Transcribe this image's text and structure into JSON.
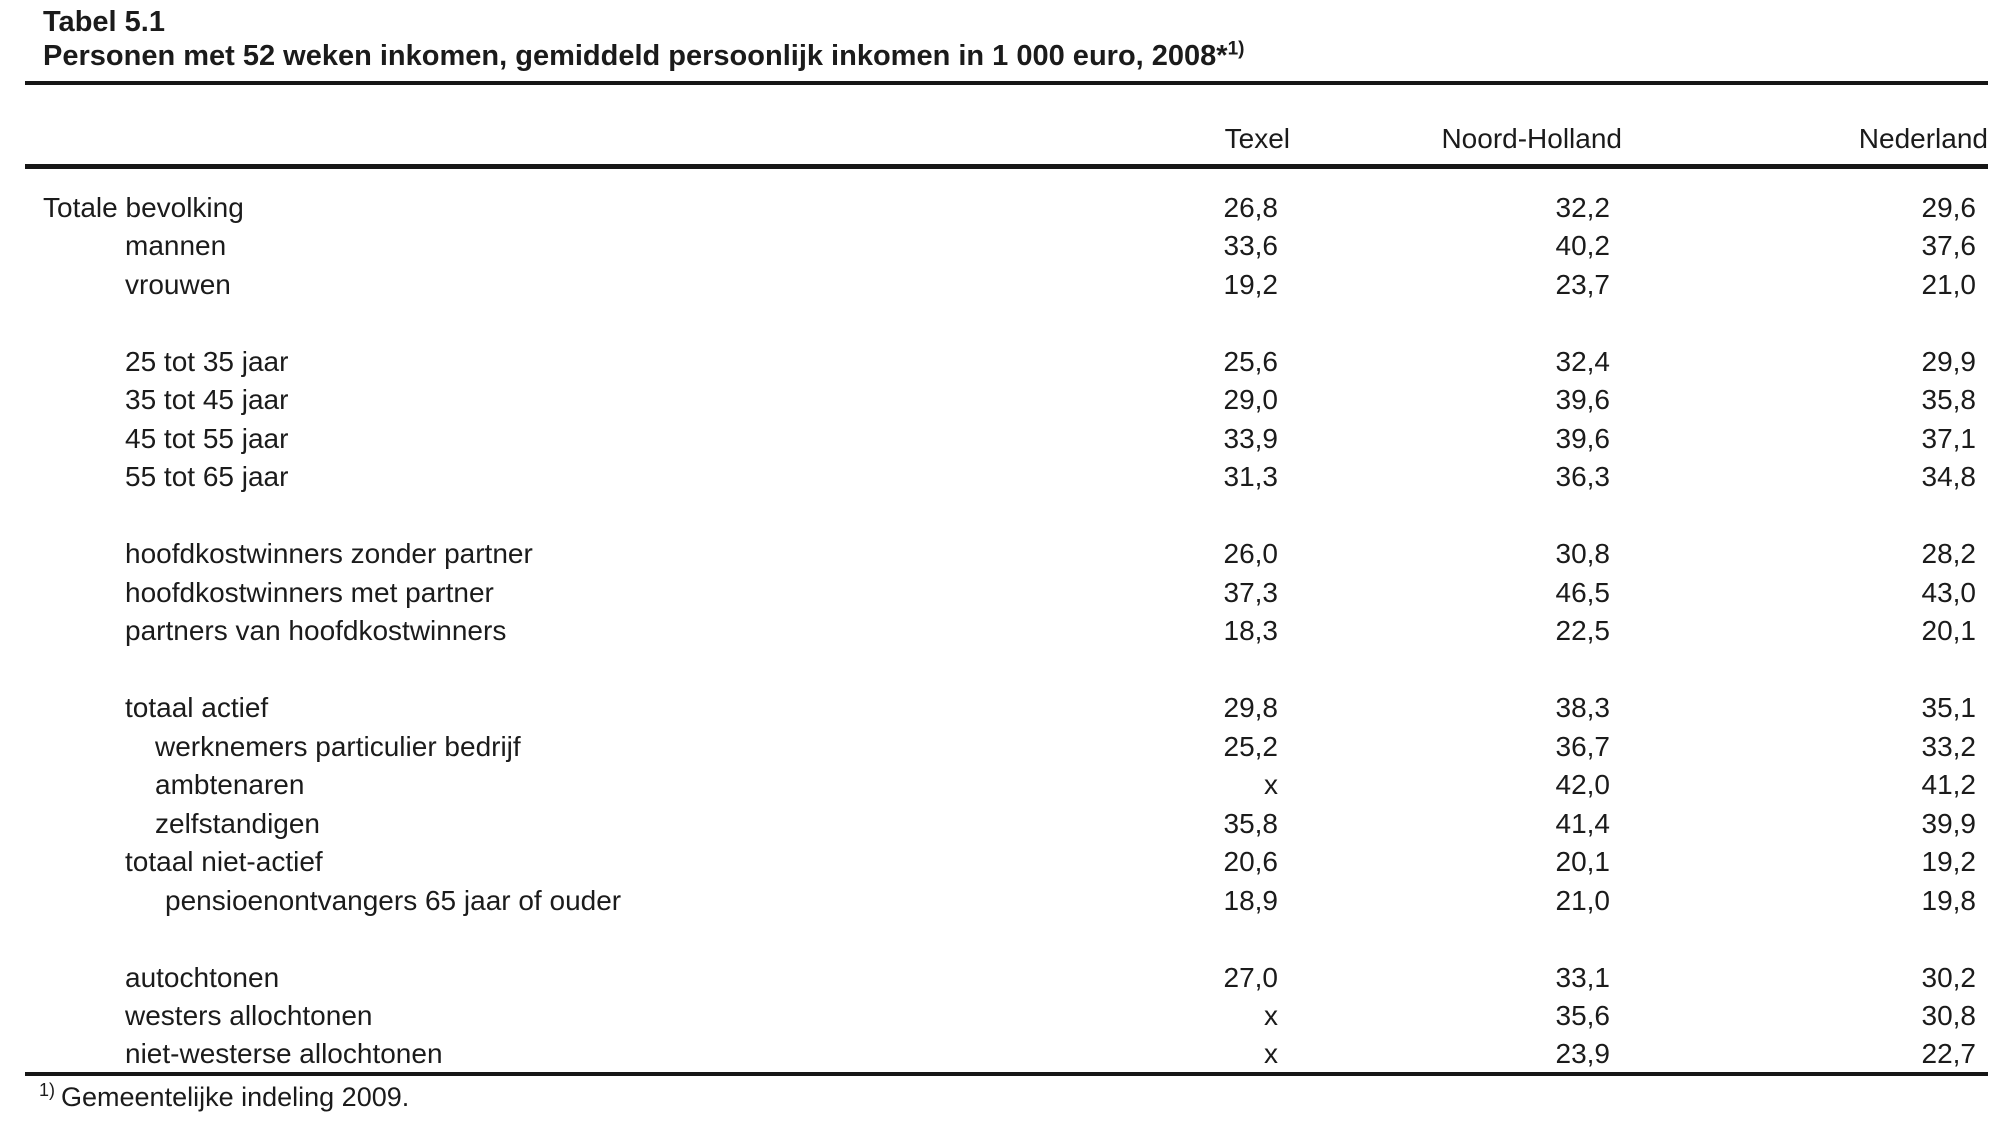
{
  "page": {
    "label": "Tabel 5.1",
    "title": "Personen met 52 weken inkomen, gemiddeld persoonlijk inkomen in 1 000 euro, 2008*",
    "title_note_marker": "1)",
    "columns": [
      "Texel",
      "Noord-Holland",
      "Nederland"
    ],
    "row_groups": [
      {
        "rows": [
          {
            "label": "Totale bevolking",
            "indent": 0,
            "values": [
              "26,8",
              "32,2",
              "29,6"
            ]
          },
          {
            "label": "mannen",
            "indent": 1,
            "values": [
              "33,6",
              "40,2",
              "37,6"
            ]
          },
          {
            "label": "vrouwen",
            "indent": 1,
            "values": [
              "19,2",
              "23,7",
              "21,0"
            ]
          }
        ]
      },
      {
        "rows": [
          {
            "label": "25 tot 35 jaar",
            "indent": 1,
            "values": [
              "25,6",
              "32,4",
              "29,9"
            ]
          },
          {
            "label": "35 tot 45 jaar",
            "indent": 1,
            "values": [
              "29,0",
              "39,6",
              "35,8"
            ]
          },
          {
            "label": "45 tot 55 jaar",
            "indent": 1,
            "values": [
              "33,9",
              "39,6",
              "37,1"
            ]
          },
          {
            "label": "55 tot 65 jaar",
            "indent": 1,
            "values": [
              "31,3",
              "36,3",
              "34,8"
            ]
          }
        ]
      },
      {
        "rows": [
          {
            "label": "hoofdkostwinners zonder partner",
            "indent": 1,
            "values": [
              "26,0",
              "30,8",
              "28,2"
            ]
          },
          {
            "label": "hoofdkostwinners met partner",
            "indent": 1,
            "values": [
              "37,3",
              "46,5",
              "43,0"
            ]
          },
          {
            "label": "partners van hoofdkostwinners",
            "indent": 1,
            "values": [
              "18,3",
              "22,5",
              "20,1"
            ]
          }
        ]
      },
      {
        "rows": [
          {
            "label": "totaal actief",
            "indent": 1,
            "values": [
              "29,8",
              "38,3",
              "35,1"
            ]
          },
          {
            "label": "werknemers particulier bedrijf",
            "indent": 2,
            "values": [
              "25,2",
              "36,7",
              "33,2"
            ]
          },
          {
            "label": "ambtenaren",
            "indent": 2,
            "values": [
              "x",
              "42,0",
              "41,2"
            ]
          },
          {
            "label": "zelfstandigen",
            "indent": 2,
            "values": [
              "35,8",
              "41,4",
              "39,9"
            ]
          },
          {
            "label": "totaal niet-actief",
            "indent": 1,
            "values": [
              "20,6",
              "20,1",
              "19,2"
            ]
          },
          {
            "label": "pensioenontvangers 65 jaar of ouder",
            "indent": 3,
            "values": [
              "18,9",
              "21,0",
              "19,8"
            ]
          }
        ]
      },
      {
        "rows": [
          {
            "label": "autochtonen",
            "indent": 1,
            "values": [
              "27,0",
              "33,1",
              "30,2"
            ]
          },
          {
            "label": "westers allochtonen",
            "indent": 1,
            "values": [
              "x",
              "35,6",
              "30,8"
            ]
          },
          {
            "label": "niet-westerse allochtonen",
            "indent": 1,
            "values": [
              "x",
              "23,9",
              "22,7"
            ]
          }
        ]
      }
    ],
    "footnote": {
      "marker": "1)",
      "text": "Gemeentelijke indeling 2009."
    }
  },
  "chart_data": {
    "type": "table",
    "title": "Tabel 5.1 — Personen met 52 weken inkomen, gemiddeld persoonlijk inkomen in 1 000 euro, 2008*1)",
    "columns": [
      "Texel",
      "Noord-Holland",
      "Nederland"
    ],
    "rows": [
      {
        "label": "Totale bevolking",
        "values": [
          "26,8",
          "32,2",
          "29,6"
        ]
      },
      {
        "label": "mannen",
        "values": [
          "33,6",
          "40,2",
          "37,6"
        ]
      },
      {
        "label": "vrouwen",
        "values": [
          "19,2",
          "23,7",
          "21,0"
        ]
      },
      {
        "label": "25 tot 35 jaar",
        "values": [
          "25,6",
          "32,4",
          "29,9"
        ]
      },
      {
        "label": "35 tot 45 jaar",
        "values": [
          "29,0",
          "39,6",
          "35,8"
        ]
      },
      {
        "label": "45 tot 55 jaar",
        "values": [
          "33,9",
          "39,6",
          "37,1"
        ]
      },
      {
        "label": "55 tot 65 jaar",
        "values": [
          "31,3",
          "36,3",
          "34,8"
        ]
      },
      {
        "label": "hoofdkostwinners zonder partner",
        "values": [
          "26,0",
          "30,8",
          "28,2"
        ]
      },
      {
        "label": "hoofdkostwinners met partner",
        "values": [
          "37,3",
          "46,5",
          "43,0"
        ]
      },
      {
        "label": "partners van hoofdkostwinners",
        "values": [
          "18,3",
          "22,5",
          "20,1"
        ]
      },
      {
        "label": "totaal actief",
        "values": [
          "29,8",
          "38,3",
          "35,1"
        ]
      },
      {
        "label": "werknemers particulier bedrijf",
        "values": [
          "25,2",
          "36,7",
          "33,2"
        ]
      },
      {
        "label": "ambtenaren",
        "values": [
          "x",
          "42,0",
          "41,2"
        ]
      },
      {
        "label": "zelfstandigen",
        "values": [
          "35,8",
          "41,4",
          "39,9"
        ]
      },
      {
        "label": "totaal niet-actief",
        "values": [
          "20,6",
          "20,1",
          "19,2"
        ]
      },
      {
        "label": "pensioenontvangers 65 jaar of ouder",
        "values": [
          "18,9",
          "21,0",
          "19,8"
        ]
      },
      {
        "label": "autochtonen",
        "values": [
          "27,0",
          "33,1",
          "30,2"
        ]
      },
      {
        "label": "westers allochtonen",
        "values": [
          "x",
          "35,6",
          "30,8"
        ]
      },
      {
        "label": "niet-westerse allochtonen",
        "values": [
          "x",
          "23,9",
          "22,7"
        ]
      }
    ],
    "footnote": "1) Gemeentelijke indeling 2009."
  }
}
